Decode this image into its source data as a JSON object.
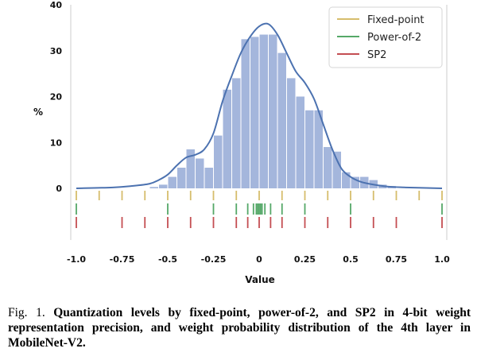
{
  "chart_data": {
    "type": "bar",
    "title": "",
    "xlabel": "Value",
    "ylabel": "%",
    "xlim": [
      -1.0,
      1.0
    ],
    "ylim": [
      0,
      40
    ],
    "x_ticks": [
      "-1.0",
      "-0.75",
      "-0.5",
      "-0.25",
      "0",
      "0.25",
      "0.5",
      "0.75",
      "1.0"
    ],
    "x_tick_values": [
      -1.0,
      -0.75,
      -0.5,
      -0.25,
      0,
      0.25,
      0.5,
      0.75,
      1.0
    ],
    "y_ticks": [
      "0",
      "10",
      "20",
      "30",
      "40"
    ],
    "y_tick_values": [
      0,
      10,
      20,
      30,
      40
    ],
    "histogram": {
      "bin_width": 0.05,
      "bin_starts": [
        -0.6,
        -0.55,
        -0.5,
        -0.45,
        -0.4,
        -0.35,
        -0.3,
        -0.25,
        -0.2,
        -0.15,
        -0.1,
        -0.05,
        0.0,
        0.05,
        0.1,
        0.15,
        0.2,
        0.25,
        0.3,
        0.35,
        0.4,
        0.45,
        0.5,
        0.55,
        0.6,
        0.65,
        0.7
      ],
      "values": [
        0.3,
        0.8,
        2.5,
        4.5,
        8.5,
        6.5,
        4.5,
        11.5,
        21.5,
        24.0,
        32.5,
        33.0,
        33.5,
        33.5,
        29.5,
        24.0,
        20.0,
        17.0,
        17.0,
        9.0,
        8.0,
        3.5,
        2.5,
        2.5,
        1.8,
        0.8,
        0.5
      ]
    },
    "kde_curve": {
      "x": [
        -1.0,
        -0.8,
        -0.7,
        -0.6,
        -0.55,
        -0.5,
        -0.45,
        -0.4,
        -0.35,
        -0.3,
        -0.25,
        -0.2,
        -0.15,
        -0.1,
        -0.05,
        0.0,
        0.05,
        0.1,
        0.15,
        0.2,
        0.25,
        0.3,
        0.35,
        0.4,
        0.45,
        0.5,
        0.55,
        0.6,
        0.7,
        0.8,
        1.0
      ],
      "y": [
        0.0,
        0.2,
        0.5,
        1.0,
        1.8,
        3.0,
        5.0,
        6.7,
        7.3,
        8.5,
        12.0,
        19.0,
        24.5,
        29.5,
        33.0,
        35.3,
        35.8,
        33.5,
        29.5,
        25.5,
        23.0,
        19.5,
        14.0,
        8.5,
        4.3,
        2.5,
        1.5,
        1.0,
        0.4,
        0.2,
        0.0
      ]
    },
    "quantization_levels": [
      {
        "name": "Fixed-point",
        "color": "#d6bd6c",
        "values": [
          -1.0,
          -0.875,
          -0.75,
          -0.625,
          -0.5,
          -0.375,
          -0.25,
          -0.125,
          0.0,
          0.125,
          0.25,
          0.375,
          0.5,
          0.625,
          0.75,
          0.875,
          1.0
        ]
      },
      {
        "name": "Power-of-2",
        "color": "#55a868",
        "values": [
          -1.0,
          -0.5,
          -0.25,
          -0.125,
          -0.0625,
          -0.03125,
          -0.015625,
          -0.0078125,
          0.0,
          0.0078125,
          0.015625,
          0.03125,
          0.0625,
          0.125,
          0.25,
          0.5,
          1.0
        ]
      },
      {
        "name": "SP2",
        "color": "#c44e52",
        "values": [
          -1.0,
          -0.75,
          -0.625,
          -0.5,
          -0.375,
          -0.25,
          -0.125,
          -0.0625,
          0.0,
          0.0625,
          0.125,
          0.25,
          0.375,
          0.5,
          0.625,
          0.75,
          1.0
        ]
      }
    ],
    "legend": {
      "placement": "top-right",
      "entries": [
        "Fixed-point",
        "Power-of-2",
        "SP2"
      ]
    },
    "colors": {
      "bars": "#a4b6dc",
      "curve": "#4c72b0",
      "background": "#ffffff"
    }
  },
  "caption": {
    "label": "Fig. 1.",
    "text": "Quantization levels by fixed-point, power-of-2, and SP2 in 4-bit weight representation precision, and weight probability distribution of the 4th layer in MobileNet-V2."
  }
}
